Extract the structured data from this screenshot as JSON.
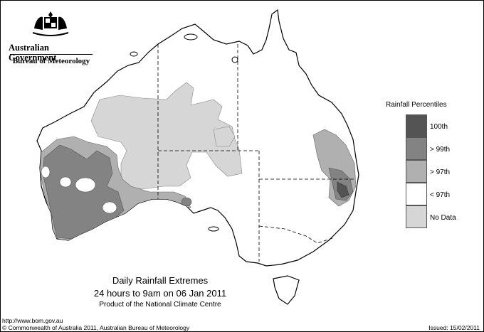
{
  "header": {
    "government": "Australian Government",
    "bureau": "Bureau of Meteorology"
  },
  "legend": {
    "title": "Rainfall Percentiles",
    "items": [
      {
        "label": "100th",
        "color": "#545454"
      },
      {
        "label": "> 99th",
        "color": "#838383"
      },
      {
        "label": "> 97th",
        "color": "#b0b0b0"
      },
      {
        "label": "< 97th",
        "color": "#ffffff"
      },
      {
        "label": "No Data",
        "color": "#d6d6d6"
      }
    ]
  },
  "caption": {
    "line1": "Daily Rainfall Extremes",
    "line2": "24 hours to 9am on 06 Jan 2011",
    "line3": "Product of the National Climate Centre"
  },
  "footer": {
    "url": "http://www.bom.gov.au",
    "copyright": "© Commonwealth of Australia 2011, Australian Bureau of Meteorology",
    "issued": "Issued: 15/02/2011"
  }
}
